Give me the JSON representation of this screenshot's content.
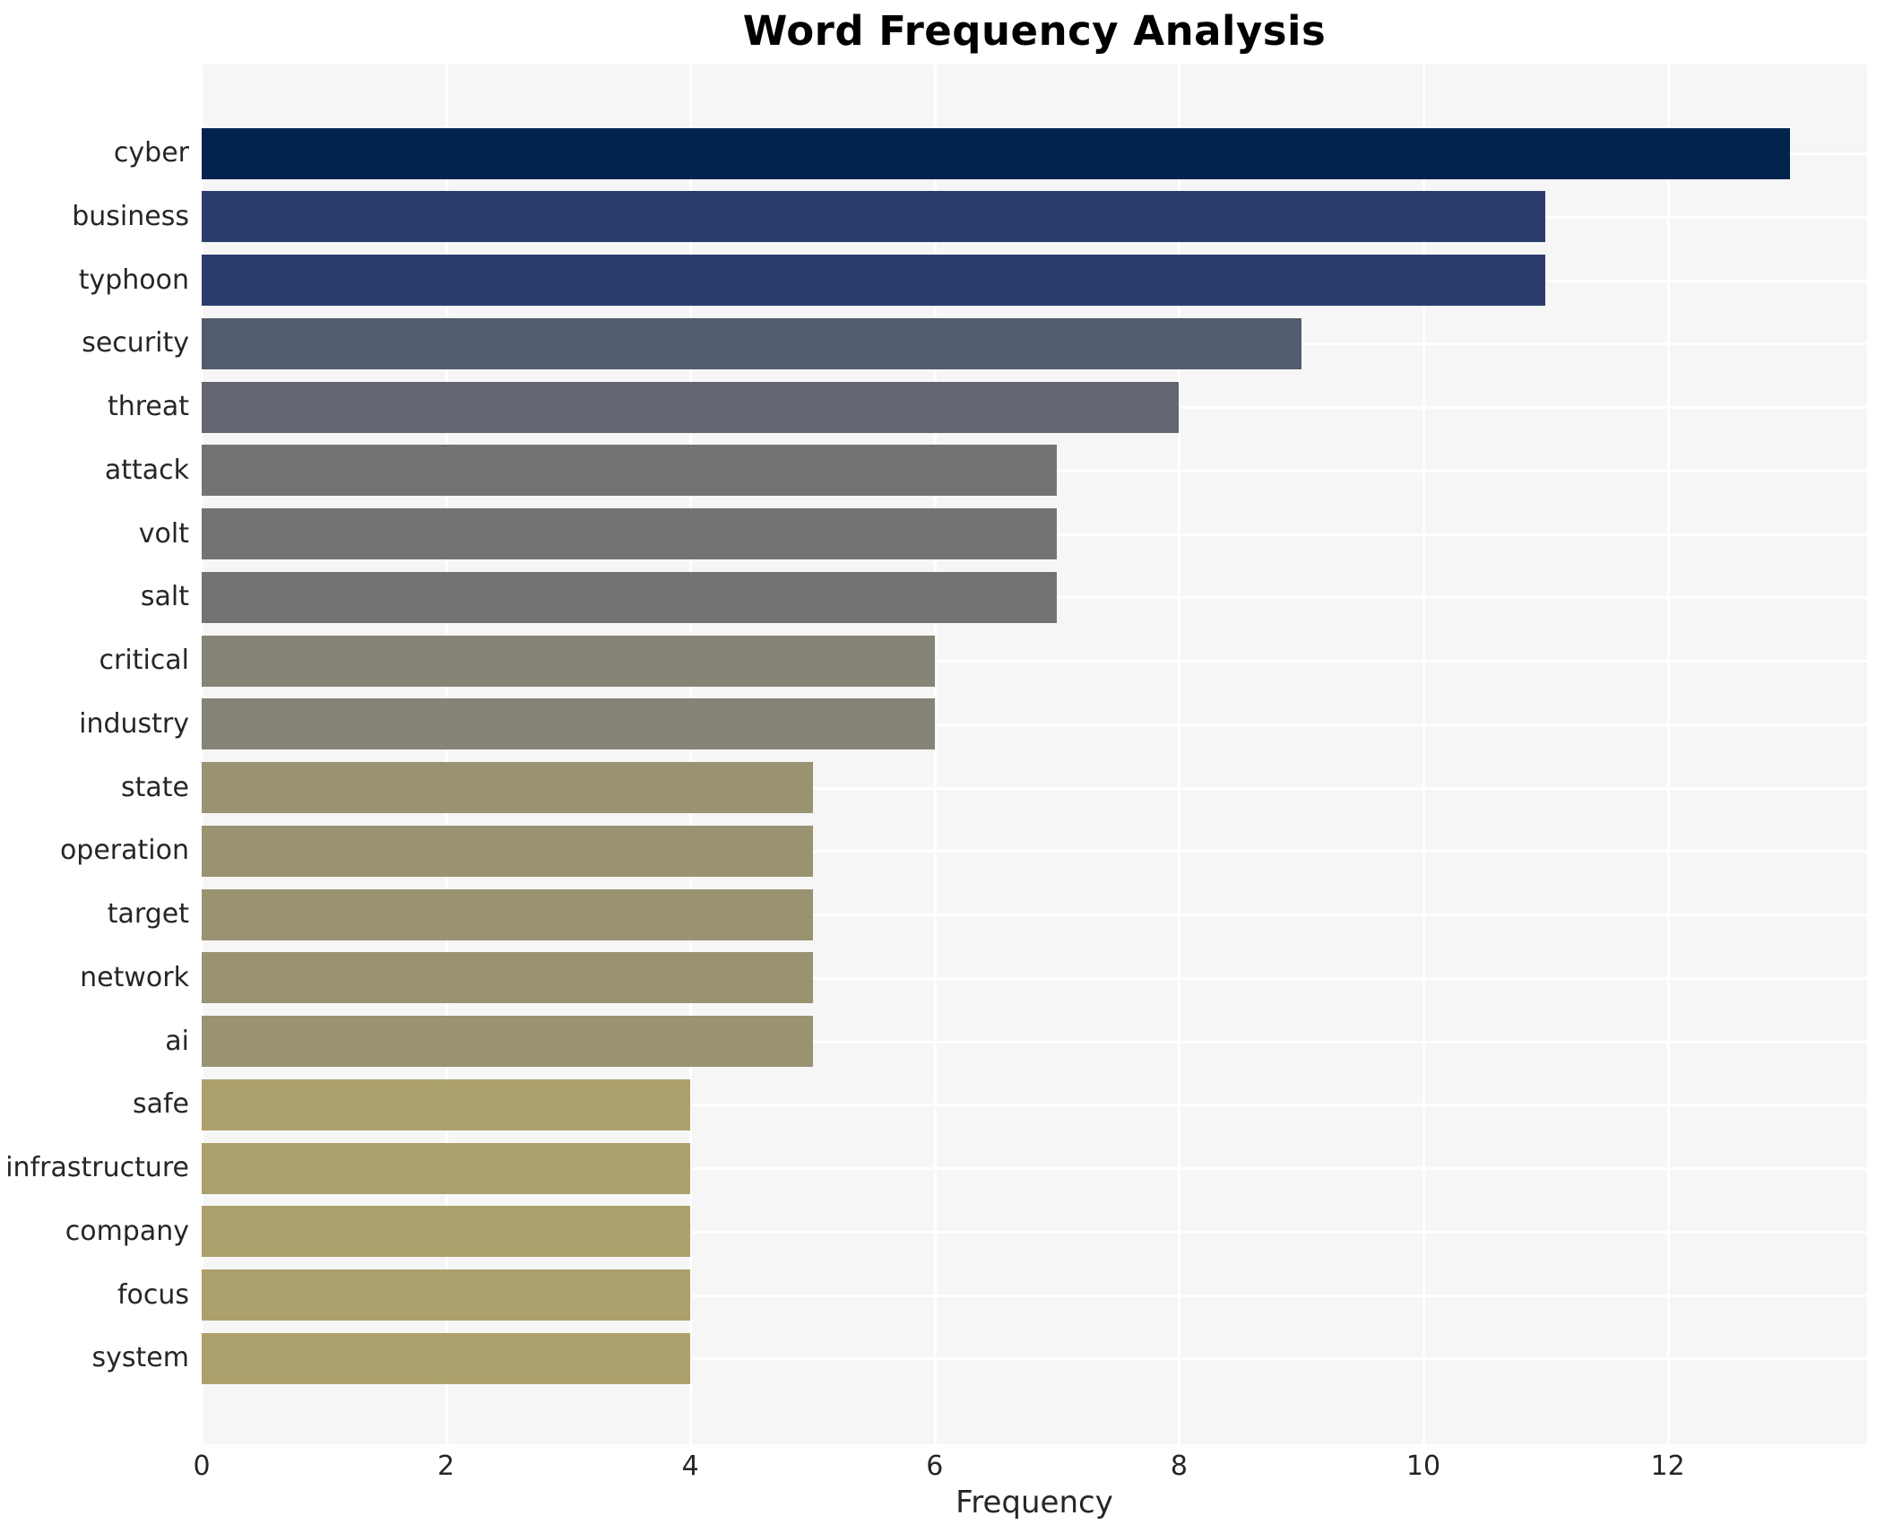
{
  "title": "Word Frequency Analysis",
  "xlabel": "Frequency",
  "chart_data": {
    "type": "bar",
    "orientation": "horizontal",
    "title": "Word Frequency Analysis",
    "xlabel": "Frequency",
    "ylabel": "",
    "categories": [
      "cyber",
      "business",
      "typhoon",
      "security",
      "threat",
      "attack",
      "volt",
      "salt",
      "critical",
      "industry",
      "state",
      "operation",
      "target",
      "network",
      "ai",
      "safe",
      "infrastructure",
      "company",
      "focus",
      "system"
    ],
    "values": [
      13,
      11,
      11,
      9,
      8,
      7,
      7,
      7,
      6,
      6,
      5,
      5,
      5,
      5,
      5,
      4,
      4,
      4,
      4,
      4
    ],
    "bar_colors": [
      "#02234e",
      "#2b3d6b",
      "#2b3d6b",
      "#535b6f",
      "#636671",
      "#737373",
      "#737373",
      "#737373",
      "#868377",
      "#868377",
      "#9a9372",
      "#9a9372",
      "#9a9372",
      "#9a9372",
      "#9a9372",
      "#aca06c",
      "#aca06c",
      "#aca06c",
      "#aca06c",
      "#aca06c"
    ],
    "xticks": [
      0,
      2,
      4,
      6,
      8,
      10,
      12
    ],
    "xlim": [
      0,
      13.63
    ],
    "grid": true,
    "legend": "none",
    "plot_bg_color": "#f6f6f6",
    "grid_color": "#ffffff",
    "figure_bg_color": "#ffffff",
    "text_color": "#262626",
    "title_color": "#000000"
  }
}
